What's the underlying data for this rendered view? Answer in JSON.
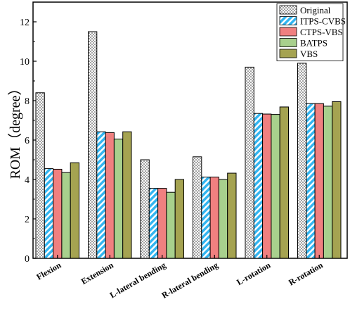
{
  "chart_data": {
    "type": "bar",
    "title": "",
    "xlabel": "",
    "ylabel": "ROM（degree）",
    "ylim": [
      0,
      13
    ],
    "yticks": [
      0,
      2,
      4,
      6,
      8,
      10,
      12
    ],
    "grid": false,
    "legend_position": "top-right",
    "categories": [
      "Flexion",
      "Extension",
      "L-lateral bending",
      "R-lateral bending",
      "L-rotation",
      "R-rotation"
    ],
    "series": [
      {
        "name": "Original",
        "values": [
          8.4,
          11.5,
          5.0,
          5.15,
          9.7,
          9.9
        ],
        "pattern": "dots",
        "color": "#ffffff"
      },
      {
        "name": "ITPS-CVBS",
        "values": [
          4.55,
          6.42,
          3.55,
          4.12,
          7.35,
          7.85
        ],
        "pattern": "diagonal",
        "color": "#33b5f0"
      },
      {
        "name": "CTPS-VBS",
        "values": [
          4.52,
          6.38,
          3.55,
          4.12,
          7.32,
          7.85
        ],
        "pattern": "solid",
        "color": "#f08080"
      },
      {
        "name": "BATPS",
        "values": [
          4.35,
          6.05,
          3.35,
          4.0,
          7.3,
          7.72
        ],
        "pattern": "solid",
        "color": "#a8d08d"
      },
      {
        "name": "VBS",
        "values": [
          4.85,
          6.42,
          4.0,
          4.32,
          7.68,
          7.95
        ],
        "pattern": "solid",
        "color": "#a5a351"
      }
    ]
  }
}
